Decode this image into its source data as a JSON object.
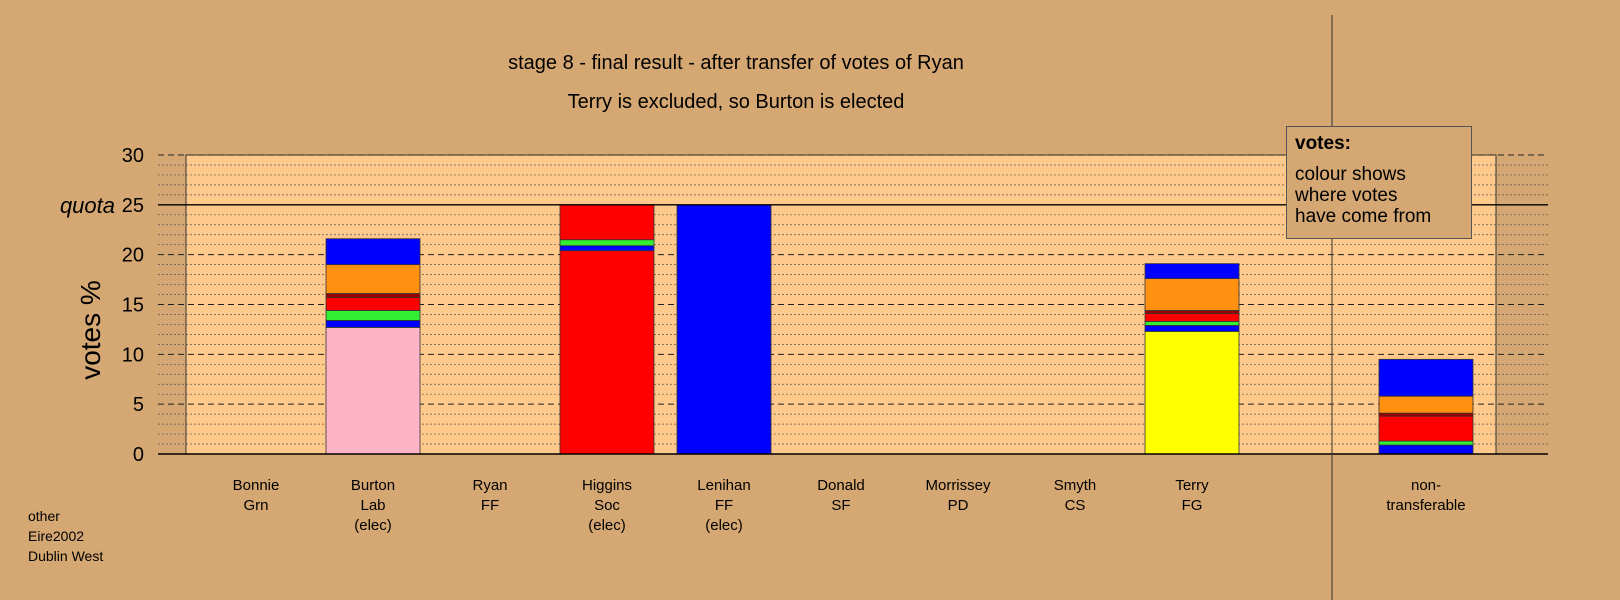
{
  "title_line1": "stage 8 - final result - after transfer of votes of Ryan",
  "title_line2": "Terry is excluded, so Burton is elected",
  "legend": {
    "title": "votes:",
    "lines": [
      "colour shows",
      "where votes",
      "have come from"
    ]
  },
  "footer": [
    "other",
    "Eire2002",
    "Dublin West"
  ],
  "colors": {
    "background": "#D5A873",
    "plot": "#FFC98C",
    "lab": "#FFB3C6",
    "ff": "#0000FF",
    "fg": "#FFFF00",
    "soc": "#FF0000",
    "orange": "#FF9010",
    "green": "#33EE33",
    "darkred": "#990000"
  },
  "chart_data": {
    "type": "bar",
    "stacked": true,
    "ylabel": "votes %",
    "ylim": [
      0,
      30
    ],
    "yticks": [
      0,
      5,
      10,
      15,
      20,
      25,
      30
    ],
    "quota": 25,
    "quota_label": "quota",
    "categories": [
      {
        "name": "Bonnie",
        "party": "Grn",
        "note": ""
      },
      {
        "name": "Burton",
        "party": "Lab",
        "note": "(elec)"
      },
      {
        "name": "Ryan",
        "party": "FF",
        "note": ""
      },
      {
        "name": "Higgins",
        "party": "Soc",
        "note": "(elec)"
      },
      {
        "name": "Lenihan",
        "party": "FF",
        "note": "(elec)"
      },
      {
        "name": "Donald",
        "party": "SF",
        "note": ""
      },
      {
        "name": "Morrissey",
        "party": "PD",
        "note": ""
      },
      {
        "name": "Smyth",
        "party": "CS",
        "note": ""
      },
      {
        "name": "Terry",
        "party": "FG",
        "note": ""
      },
      {
        "name": "non-",
        "party": "transferable",
        "note": ""
      }
    ],
    "stacks": [
      [],
      [
        {
          "value": 12.7,
          "color": "#FFB3C6"
        },
        {
          "value": 0.7,
          "color": "#0000FF"
        },
        {
          "value": 1.0,
          "color": "#33EE33"
        },
        {
          "value": 1.3,
          "color": "#FF0000"
        },
        {
          "value": 0.4,
          "color": "#990000"
        },
        {
          "value": 2.9,
          "color": "#FF9010"
        },
        {
          "value": 2.6,
          "color": "#0000FF"
        }
      ],
      [],
      [
        {
          "value": 20.4,
          "color": "#FF0000"
        },
        {
          "value": 0.5,
          "color": "#0000FF"
        },
        {
          "value": 0.6,
          "color": "#33EE33"
        },
        {
          "value": 3.5,
          "color": "#FF0000"
        }
      ],
      [
        {
          "value": 25.0,
          "color": "#0000FF"
        }
      ],
      [],
      [],
      [],
      [
        {
          "value": 12.3,
          "color": "#FFFF00"
        },
        {
          "value": 0.6,
          "color": "#0000FF"
        },
        {
          "value": 0.4,
          "color": "#33EE33"
        },
        {
          "value": 0.8,
          "color": "#FF0000"
        },
        {
          "value": 0.3,
          "color": "#990000"
        },
        {
          "value": 3.2,
          "color": "#FF9010"
        },
        {
          "value": 1.5,
          "color": "#0000FF"
        }
      ],
      [
        {
          "value": 0.9,
          "color": "#0000FF"
        },
        {
          "value": 0.4,
          "color": "#33EE33"
        },
        {
          "value": 2.5,
          "color": "#FF0000"
        },
        {
          "value": 0.3,
          "color": "#990000"
        },
        {
          "value": 1.7,
          "color": "#FF9010"
        },
        {
          "value": 3.7,
          "color": "#0000FF"
        }
      ]
    ]
  }
}
